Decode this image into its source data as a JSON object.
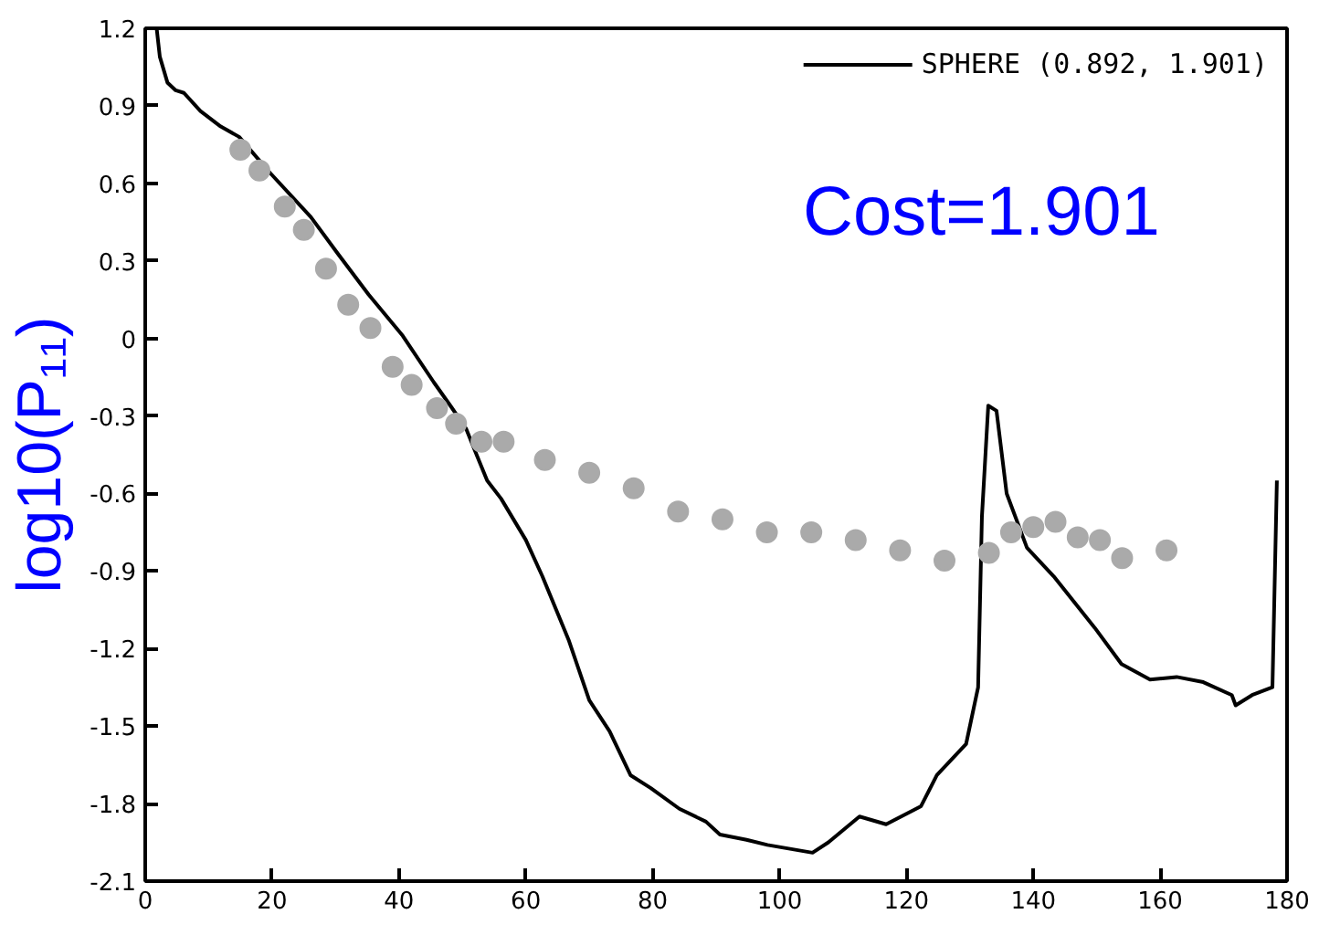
{
  "chart_data": {
    "type": "line",
    "ylabel": "log10(P₁₁)",
    "xlim": [
      0,
      180
    ],
    "ylim": [
      -2.1,
      1.2
    ],
    "xticks": [
      0,
      20,
      40,
      60,
      80,
      100,
      120,
      140,
      160,
      180
    ],
    "yticks": [
      -2.1,
      -1.8,
      -1.5,
      -1.2,
      -0.9,
      -0.6,
      -0.3,
      0,
      0.3,
      0.6,
      0.9,
      1.2
    ],
    "grid": false,
    "legend": "top right",
    "line_style": "solid",
    "annotations": [
      "Cost=1.901"
    ],
    "series": [
      {
        "name": "SPHERE (0.892, 1.901)",
        "color": "#000000",
        "marker": "none",
        "x": [
          1.8,
          2.3,
          3.5,
          4.8,
          6.1,
          8.7,
          11.9,
          14.8,
          19.7,
          26.1,
          30.3,
          35.2,
          40.6,
          45.5,
          48.1,
          50.6,
          51.9,
          53.9,
          56.1,
          60.0,
          62.6,
          66.8,
          70.0,
          73.2,
          76.5,
          79.7,
          84.2,
          88.4,
          90.6,
          94.8,
          98.1,
          105.2,
          107.7,
          112.6,
          116.8,
          122.3,
          124.8,
          129.4,
          131.3,
          131.9,
          132.9,
          134.2,
          135.8,
          139.0,
          143.2,
          149.7,
          153.9,
          158.4,
          162.6,
          166.8,
          171.3,
          171.9,
          174.5,
          177.7,
          178.4
        ],
        "values": [
          1.2,
          1.09,
          0.99,
          0.96,
          0.95,
          0.88,
          0.82,
          0.78,
          0.64,
          0.47,
          0.33,
          0.17,
          0.01,
          -0.17,
          -0.26,
          -0.35,
          -0.43,
          -0.55,
          -0.62,
          -0.78,
          -0.92,
          -1.17,
          -1.4,
          -1.52,
          -1.69,
          -1.74,
          -1.82,
          -1.87,
          -1.92,
          -1.94,
          -1.96,
          -1.99,
          -1.95,
          -1.85,
          -1.88,
          -1.81,
          -1.69,
          -1.57,
          -1.35,
          -0.69,
          -0.26,
          -0.28,
          -0.6,
          -0.81,
          -0.92,
          -1.12,
          -1.26,
          -1.32,
          -1.31,
          -1.33,
          -1.38,
          -1.42,
          -1.38,
          -1.35,
          -0.55
        ]
      },
      {
        "type": "scatter",
        "color": "#aaaaaa",
        "marker": "circle",
        "x": [
          15,
          18,
          22,
          25,
          28.5,
          32,
          35.5,
          39,
          42,
          46,
          49,
          53,
          56.5,
          63,
          70,
          77,
          84,
          91,
          98,
          105,
          112,
          119,
          126,
          133,
          136.5,
          140,
          143.5,
          147,
          150.5,
          154,
          161
        ],
        "values": [
          0.73,
          0.65,
          0.51,
          0.42,
          0.27,
          0.13,
          0.04,
          -0.11,
          -0.18,
          -0.27,
          -0.33,
          -0.4,
          -0.4,
          -0.47,
          -0.52,
          -0.58,
          -0.67,
          -0.7,
          -0.75,
          -0.75,
          -0.78,
          -0.82,
          -0.86,
          -0.83,
          -0.75,
          -0.73,
          -0.71,
          -0.77,
          -0.78,
          -0.85,
          -0.82
        ]
      }
    ]
  }
}
